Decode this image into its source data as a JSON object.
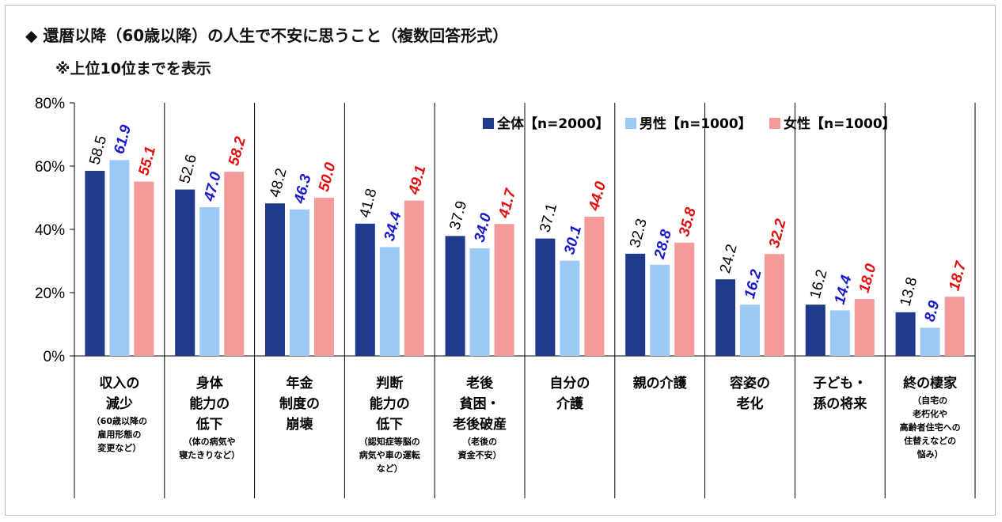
{
  "title": "◆ 還暦以降（60歳以降）の人生で不安に思うこと（複数回答形式）",
  "note": "※上位10位までを表示",
  "chart_data": {
    "type": "bar",
    "ylim": [
      0,
      80
    ],
    "yticks": [
      "0%",
      "20%",
      "40%",
      "60%",
      "80%"
    ],
    "grid": false,
    "legend_position": "top-right",
    "categories": [
      {
        "lines": [
          "収入の",
          "減少"
        ],
        "sub": [
          "（60歳以降の",
          "雇用形態の",
          "変更など）"
        ]
      },
      {
        "lines": [
          "身体",
          "能力の",
          "低下"
        ],
        "sub": [
          "（体の病気や",
          "寝たきりなど）"
        ]
      },
      {
        "lines": [
          "年金",
          "制度の",
          "崩壊"
        ],
        "sub": []
      },
      {
        "lines": [
          "判断",
          "能力の",
          "低下"
        ],
        "sub": [
          "（認知症等脳の",
          "病気や車の運転",
          "など）"
        ]
      },
      {
        "lines": [
          "老後",
          "貧困・",
          "老後破産"
        ],
        "sub": [
          "（老後の",
          "資金不安）"
        ]
      },
      {
        "lines": [
          "自分の",
          "介護"
        ],
        "sub": []
      },
      {
        "lines": [
          "親の介護"
        ],
        "sub": []
      },
      {
        "lines": [
          "容姿の",
          "老化"
        ],
        "sub": []
      },
      {
        "lines": [
          "子ども・",
          "孫の将来"
        ],
        "sub": []
      },
      {
        "lines": [
          "終の棲家"
        ],
        "sub": [
          "（自宅の",
          "老朽化や",
          "高齢者住宅への",
          "住替えなどの",
          "悩み）"
        ]
      }
    ],
    "series": [
      {
        "name": "全体【n=2000】",
        "color": "#1f3a8a",
        "label_color": "#000000",
        "values": [
          58.5,
          52.6,
          48.2,
          41.8,
          37.9,
          37.1,
          32.3,
          24.2,
          16.2,
          13.8
        ],
        "labels": [
          "58.5",
          "52.6",
          "48.2",
          "41.8",
          "37.9",
          "37.1",
          "32.3",
          "24.2",
          "16.2",
          "13.8"
        ]
      },
      {
        "name": "男性【n=1000】",
        "color": "#9cc9f5",
        "label_color": "#1a1acc",
        "values": [
          61.9,
          47.0,
          46.3,
          34.4,
          34.0,
          30.1,
          28.8,
          16.2,
          14.4,
          8.9
        ],
        "labels": [
          "61.9",
          "47.0",
          "46.3",
          "34.4",
          "34.0",
          "30.1",
          "28.8",
          "16.2",
          "14.4",
          "8.9"
        ]
      },
      {
        "name": "女性【n=1000】",
        "color": "#f59a9a",
        "label_color": "#e01010",
        "values": [
          55.1,
          58.2,
          50.0,
          49.1,
          41.7,
          44.0,
          35.8,
          32.2,
          18.0,
          18.7
        ],
        "labels": [
          "55.1",
          "58.2",
          "50.0",
          "49.1",
          "41.7",
          "44.0",
          "35.8",
          "32.2",
          "18.0",
          "18.7"
        ]
      }
    ]
  }
}
